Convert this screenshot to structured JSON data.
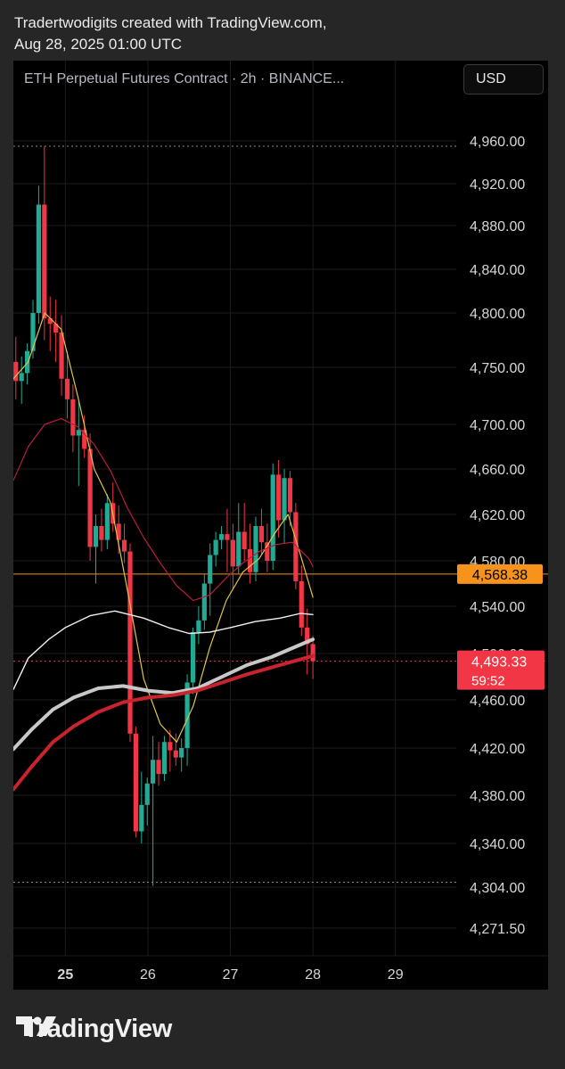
{
  "header": {
    "line1": "Tradertwodigits created with TradingView.com,",
    "line2": "Aug 28, 2025 01:00 UTC"
  },
  "chart_title": "ETH Perpetual Futures Contract · 2h · BINANCE...",
  "currency_button": "USD",
  "footer_brand": "TradingView",
  "chart_data": {
    "type": "candlestick",
    "symbol": "ETH Perpetual Futures Contract",
    "interval": "2h",
    "exchange": "BINANCE",
    "y_ticks": [
      "4,960.00",
      "4,920.00",
      "4,880.00",
      "4,840.00",
      "4,800.00",
      "4,750.00",
      "4,700.00",
      "4,660.00",
      "4,620.00",
      "4,580.00",
      "4,540.00",
      "4,500.00",
      "4,460.00",
      "4,420.00",
      "4,380.00",
      "4,340.00",
      "4,304.00",
      "4,271.50"
    ],
    "y_tick_values": [
      4960,
      4920,
      4880,
      4840,
      4800,
      4750,
      4700,
      4660,
      4620,
      4580,
      4540,
      4500,
      4460,
      4420,
      4380,
      4340,
      4304,
      4271.5
    ],
    "x_ticks": [
      {
        "label": "25",
        "day": 25,
        "bold": true
      },
      {
        "label": "26",
        "day": 26
      },
      {
        "label": "27",
        "day": 27
      },
      {
        "label": "28",
        "day": 28
      },
      {
        "label": "29",
        "day": 29
      }
    ],
    "x_range_days": [
      24.37,
      30.85
    ],
    "price_markers": [
      {
        "label": "4,568.38",
        "value": 4568.38,
        "color": "#f7931a"
      },
      {
        "label": "4,493.33",
        "value": 4493.33,
        "color": "#f23645",
        "countdown": "59:52"
      }
    ],
    "dotted_levels": [
      4955,
      4308
    ],
    "candles": [
      {
        "o": 4755,
        "h": 4778,
        "l": 4722,
        "c": 4738
      },
      {
        "o": 4738,
        "h": 4760,
        "l": 4718,
        "c": 4745
      },
      {
        "o": 4745,
        "h": 4772,
        "l": 4735,
        "c": 4765
      },
      {
        "o": 4765,
        "h": 4812,
        "l": 4758,
        "c": 4800
      },
      {
        "o": 4800,
        "h": 4918,
        "l": 4790,
        "c": 4900
      },
      {
        "o": 4900,
        "h": 4955,
        "l": 4775,
        "c": 4795
      },
      {
        "o": 4795,
        "h": 4815,
        "l": 4765,
        "c": 4790
      },
      {
        "o": 4790,
        "h": 4812,
        "l": 4755,
        "c": 4782
      },
      {
        "o": 4782,
        "h": 4798,
        "l": 4725,
        "c": 4740
      },
      {
        "o": 4740,
        "h": 4765,
        "l": 4705,
        "c": 4722
      },
      {
        "o": 4722,
        "h": 4735,
        "l": 4675,
        "c": 4690
      },
      {
        "o": 4690,
        "h": 4720,
        "l": 4645,
        "c": 4695
      },
      {
        "o": 4695,
        "h": 4708,
        "l": 4670,
        "c": 4678
      },
      {
        "o": 4678,
        "h": 4692,
        "l": 4580,
        "c": 4592
      },
      {
        "o": 4592,
        "h": 4620,
        "l": 4560,
        "c": 4610
      },
      {
        "o": 4610,
        "h": 4625,
        "l": 4588,
        "c": 4598
      },
      {
        "o": 4598,
        "h": 4638,
        "l": 4590,
        "c": 4630
      },
      {
        "o": 4630,
        "h": 4648,
        "l": 4605,
        "c": 4612
      },
      {
        "o": 4612,
        "h": 4628,
        "l": 4586,
        "c": 4598
      },
      {
        "o": 4598,
        "h": 4612,
        "l": 4578,
        "c": 4588
      },
      {
        "o": 4588,
        "h": 4595,
        "l": 4425,
        "c": 4432
      },
      {
        "o": 4432,
        "h": 4438,
        "l": 4345,
        "c": 4350
      },
      {
        "o": 4350,
        "h": 4400,
        "l": 4340,
        "c": 4372
      },
      {
        "o": 4372,
        "h": 4395,
        "l": 4355,
        "c": 4390
      },
      {
        "o": 4390,
        "h": 4430,
        "l": 4305,
        "c": 4410
      },
      {
        "o": 4410,
        "h": 4425,
        "l": 4388,
        "c": 4398
      },
      {
        "o": 4398,
        "h": 4430,
        "l": 4392,
        "c": 4425
      },
      {
        "o": 4425,
        "h": 4435,
        "l": 4400,
        "c": 4418
      },
      {
        "o": 4418,
        "h": 4432,
        "l": 4405,
        "c": 4412
      },
      {
        "o": 4412,
        "h": 4428,
        "l": 4400,
        "c": 4420
      },
      {
        "o": 4420,
        "h": 4482,
        "l": 4405,
        "c": 4475
      },
      {
        "o": 4475,
        "h": 4522,
        "l": 4465,
        "c": 4518
      },
      {
        "o": 4518,
        "h": 4540,
        "l": 4508,
        "c": 4528
      },
      {
        "o": 4528,
        "h": 4568,
        "l": 4520,
        "c": 4560
      },
      {
        "o": 4560,
        "h": 4595,
        "l": 4532,
        "c": 4585
      },
      {
        "o": 4585,
        "h": 4605,
        "l": 4575,
        "c": 4598
      },
      {
        "o": 4598,
        "h": 4610,
        "l": 4590,
        "c": 4603
      },
      {
        "o": 4603,
        "h": 4625,
        "l": 4570,
        "c": 4598
      },
      {
        "o": 4598,
        "h": 4612,
        "l": 4555,
        "c": 4575
      },
      {
        "o": 4575,
        "h": 4630,
        "l": 4568,
        "c": 4605
      },
      {
        "o": 4605,
        "h": 4630,
        "l": 4580,
        "c": 4590
      },
      {
        "o": 4590,
        "h": 4612,
        "l": 4560,
        "c": 4570
      },
      {
        "o": 4570,
        "h": 4618,
        "l": 4562,
        "c": 4610
      },
      {
        "o": 4610,
        "h": 4625,
        "l": 4585,
        "c": 4596
      },
      {
        "o": 4596,
        "h": 4612,
        "l": 4570,
        "c": 4580
      },
      {
        "o": 4580,
        "h": 4665,
        "l": 4572,
        "c": 4655
      },
      {
        "o": 4655,
        "h": 4668,
        "l": 4600,
        "c": 4615
      },
      {
        "o": 4615,
        "h": 4660,
        "l": 4595,
        "c": 4652
      },
      {
        "o": 4652,
        "h": 4658,
        "l": 4610,
        "c": 4622
      },
      {
        "o": 4622,
        "h": 4630,
        "l": 4555,
        "c": 4562
      },
      {
        "o": 4562,
        "h": 4576,
        "l": 4515,
        "c": 4522
      },
      {
        "o": 4522,
        "h": 4538,
        "l": 4482,
        "c": 4508
      },
      {
        "o": 4508,
        "h": 4515,
        "l": 4478,
        "c": 4493.33
      }
    ],
    "moving_averages": [
      {
        "color": "#e3c24a",
        "width": 1.2,
        "points": [
          [
            24.37,
            4740
          ],
          [
            24.55,
            4755
          ],
          [
            24.75,
            4800
          ],
          [
            24.95,
            4785
          ],
          [
            25.15,
            4725
          ],
          [
            25.35,
            4660
          ],
          [
            25.55,
            4630
          ],
          [
            25.75,
            4555
          ],
          [
            25.95,
            4478
          ],
          [
            26.15,
            4440
          ],
          [
            26.35,
            4425
          ],
          [
            26.55,
            4455
          ],
          [
            26.75,
            4505
          ],
          [
            26.95,
            4545
          ],
          [
            27.15,
            4570
          ],
          [
            27.35,
            4582
          ],
          [
            27.55,
            4605
          ],
          [
            27.7,
            4620
          ],
          [
            27.85,
            4585
          ],
          [
            28.0,
            4548
          ]
        ]
      },
      {
        "color": "#b81d3c",
        "width": 1.2,
        "points": [
          [
            24.37,
            4650
          ],
          [
            24.55,
            4680
          ],
          [
            24.75,
            4700
          ],
          [
            24.95,
            4705
          ],
          [
            25.15,
            4698
          ],
          [
            25.35,
            4682
          ],
          [
            25.55,
            4658
          ],
          [
            25.75,
            4626
          ],
          [
            25.95,
            4600
          ],
          [
            26.15,
            4578
          ],
          [
            26.35,
            4558
          ],
          [
            26.55,
            4545
          ],
          [
            26.75,
            4550
          ],
          [
            26.95,
            4565
          ],
          [
            27.15,
            4578
          ],
          [
            27.35,
            4588
          ],
          [
            27.55,
            4594
          ],
          [
            27.75,
            4596
          ],
          [
            27.95,
            4582
          ],
          [
            28.0,
            4575
          ]
        ]
      },
      {
        "color": "#f2f2f2",
        "width": 1.4,
        "points": [
          [
            24.37,
            4469
          ],
          [
            24.55,
            4496
          ],
          [
            24.8,
            4512
          ],
          [
            25.0,
            4522
          ],
          [
            25.3,
            4532
          ],
          [
            25.6,
            4536
          ],
          [
            25.95,
            4530
          ],
          [
            26.25,
            4522
          ],
          [
            26.5,
            4517
          ],
          [
            26.75,
            4518
          ],
          [
            27.0,
            4522
          ],
          [
            27.3,
            4527
          ],
          [
            27.6,
            4530
          ],
          [
            27.85,
            4534
          ],
          [
            28.0,
            4533
          ]
        ]
      },
      {
        "color": "#c8c8c8",
        "width": 4,
        "points": [
          [
            24.37,
            4419
          ],
          [
            24.6,
            4436
          ],
          [
            24.85,
            4452
          ],
          [
            25.1,
            4462
          ],
          [
            25.4,
            4470
          ],
          [
            25.7,
            4472
          ],
          [
            26.0,
            4468
          ],
          [
            26.3,
            4466
          ],
          [
            26.6,
            4470
          ],
          [
            26.9,
            4480
          ],
          [
            27.2,
            4490
          ],
          [
            27.5,
            4497
          ],
          [
            27.8,
            4506
          ],
          [
            28.0,
            4512
          ]
        ]
      },
      {
        "color": "#c9232e",
        "width": 4,
        "points": [
          [
            24.37,
            4385
          ],
          [
            24.6,
            4405
          ],
          [
            24.85,
            4425
          ],
          [
            25.1,
            4438
          ],
          [
            25.4,
            4450
          ],
          [
            25.7,
            4458
          ],
          [
            26.0,
            4462
          ],
          [
            26.3,
            4464
          ],
          [
            26.6,
            4468
          ],
          [
            26.9,
            4475
          ],
          [
            27.2,
            4482
          ],
          [
            27.5,
            4488
          ],
          [
            27.8,
            4494
          ],
          [
            28.0,
            4498
          ]
        ]
      }
    ]
  }
}
